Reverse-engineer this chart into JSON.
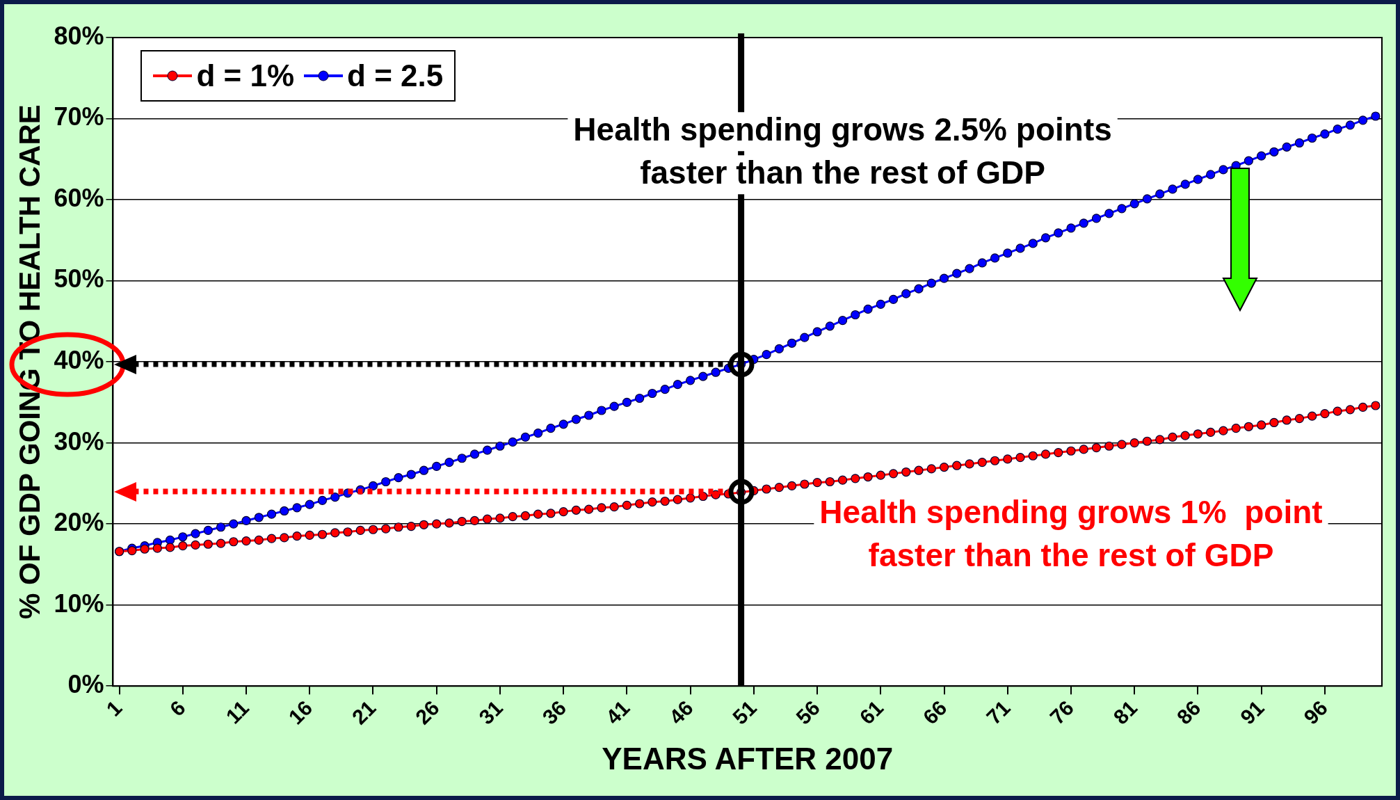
{
  "chart_data": {
    "type": "line",
    "xlabel": "YEARS AFTER 2007",
    "ylabel": "% OF GDP GOING TO HEALTH CARE",
    "x": [
      1,
      2,
      3,
      4,
      5,
      6,
      7,
      8,
      9,
      10,
      11,
      12,
      13,
      14,
      15,
      16,
      17,
      18,
      19,
      20,
      21,
      22,
      23,
      24,
      25,
      26,
      27,
      28,
      29,
      30,
      31,
      32,
      33,
      34,
      35,
      36,
      37,
      38,
      39,
      40,
      41,
      42,
      43,
      44,
      45,
      46,
      47,
      48,
      49,
      50,
      51,
      52,
      53,
      54,
      55,
      56,
      57,
      58,
      59,
      60,
      61,
      62,
      63,
      64,
      65,
      66,
      67,
      68,
      69,
      70,
      71,
      72,
      73,
      74,
      75,
      76,
      77,
      78,
      79,
      80,
      81,
      82,
      83,
      84,
      85,
      86,
      87,
      88,
      89,
      90,
      91,
      92,
      93,
      94,
      95,
      96,
      97,
      98,
      99,
      100
    ],
    "xlim": [
      0.5,
      100.5
    ],
    "xticks": [
      1,
      6,
      11,
      16,
      21,
      26,
      31,
      36,
      41,
      46,
      51,
      56,
      61,
      66,
      71,
      76,
      81,
      86,
      91,
      96
    ],
    "ylim": [
      0,
      80
    ],
    "yticks": [
      {
        "value": 0,
        "label": "0%"
      },
      {
        "value": 10,
        "label": "10%"
      },
      {
        "value": 20,
        "label": "20%"
      },
      {
        "value": 30,
        "label": "30%"
      },
      {
        "value": 40,
        "label": "40%"
      },
      {
        "value": 50,
        "label": "50%"
      },
      {
        "value": 60,
        "label": "60%"
      },
      {
        "value": 70,
        "label": "70%"
      },
      {
        "value": 80,
        "label": "80%"
      }
    ],
    "series": [
      {
        "name": "d = 1%",
        "color": "#ff0000",
        "values": [
          16.6,
          16.7,
          16.9,
          17.0,
          17.1,
          17.3,
          17.4,
          17.5,
          17.6,
          17.8,
          17.9,
          18.0,
          18.2,
          18.3,
          18.5,
          18.6,
          18.7,
          18.9,
          19.0,
          19.2,
          19.3,
          19.4,
          19.6,
          19.7,
          19.9,
          20.0,
          20.1,
          20.3,
          20.4,
          20.6,
          20.7,
          20.9,
          21.0,
          21.2,
          21.3,
          21.5,
          21.7,
          21.8,
          22.0,
          22.1,
          22.3,
          22.5,
          22.7,
          22.8,
          23.0,
          23.2,
          23.4,
          23.6,
          23.7,
          23.9,
          24.1,
          24.3,
          24.5,
          24.7,
          24.9,
          25.1,
          25.2,
          25.4,
          25.6,
          25.8,
          26.0,
          26.2,
          26.4,
          26.6,
          26.8,
          27.0,
          27.2,
          27.4,
          27.6,
          27.8,
          28.0,
          28.2,
          28.4,
          28.6,
          28.8,
          29.0,
          29.2,
          29.4,
          29.6,
          29.8,
          30.0,
          30.2,
          30.4,
          30.7,
          30.9,
          31.1,
          31.3,
          31.5,
          31.8,
          32.0,
          32.2,
          32.5,
          32.8,
          33.0,
          33.3,
          33.6,
          33.9,
          34.1,
          34.4,
          34.6
        ]
      },
      {
        "name": "d = 2.5",
        "color": "#0000ff",
        "values": [
          16.6,
          17.0,
          17.3,
          17.7,
          18.0,
          18.4,
          18.8,
          19.2,
          19.6,
          20.0,
          20.4,
          20.8,
          21.2,
          21.6,
          22.0,
          22.4,
          22.9,
          23.3,
          23.8,
          24.2,
          24.7,
          25.2,
          25.7,
          26.1,
          26.6,
          27.1,
          27.6,
          28.1,
          28.6,
          29.1,
          29.6,
          30.1,
          30.7,
          31.2,
          31.8,
          32.3,
          32.9,
          33.4,
          34.0,
          34.5,
          35.0,
          35.5,
          36.1,
          36.6,
          37.2,
          37.7,
          38.2,
          38.7,
          39.2,
          39.7,
          40.3,
          40.9,
          41.6,
          42.3,
          43.0,
          43.7,
          44.4,
          45.1,
          45.8,
          46.5,
          47.1,
          47.7,
          48.4,
          49.0,
          49.7,
          50.3,
          50.9,
          51.5,
          52.2,
          52.8,
          53.4,
          54.0,
          54.6,
          55.3,
          55.9,
          56.5,
          57.1,
          57.7,
          58.3,
          58.9,
          59.5,
          60.1,
          60.7,
          61.3,
          61.9,
          62.5,
          63.1,
          63.7,
          64.2,
          64.8,
          65.4,
          65.9,
          66.5,
          67.0,
          67.6,
          68.1,
          68.7,
          69.2,
          69.8,
          70.3
        ]
      }
    ],
    "legend": "top left",
    "marker": "circle",
    "grid": "y",
    "ref_lines": [
      {
        "axis": "x",
        "value": 50,
        "color": "#000000"
      },
      {
        "axis": "y",
        "value": 39.7,
        "color": "#000000",
        "line_style": "dotted"
      },
      {
        "axis": "y",
        "value": 24,
        "color": "#ff0000",
        "line_style": "dotted"
      }
    ],
    "annotations": [
      "Health spending grows 2.5% points\nfaster than the rest of GDP",
      "Health spending grows 1%  point\nfaster than the rest of GDP"
    ]
  }
}
